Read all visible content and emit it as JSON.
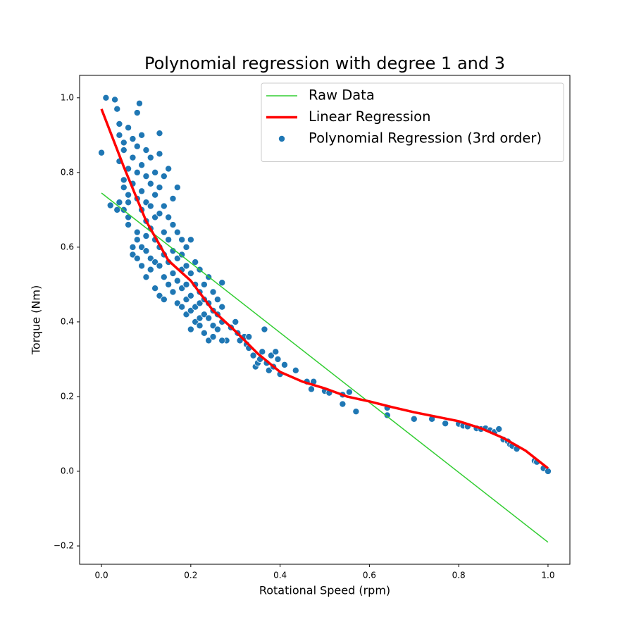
{
  "chart_data": {
    "type": "scatter",
    "title": "Polynomial regression with degree 1 and 3",
    "x_label": "Rotational Speed (rpm)",
    "y_label": "Torque (Nm)",
    "xlim": [
      -0.049,
      1.049
    ],
    "ylim": [
      -0.249,
      1.06
    ],
    "xticks": [
      {
        "value": 0,
        "label": "0.0"
      },
      0.2,
      0.4,
      0.6,
      0.8,
      {
        "value": 1,
        "label": "1.0"
      }
    ],
    "yticks": [
      {
        "value": -0.2,
        "label": "−0.2"
      },
      {
        "value": 0,
        "label": "0.0"
      },
      0.2,
      0.4,
      0.6,
      0.8,
      {
        "value": 1,
        "label": "1.0"
      }
    ],
    "grid": false,
    "legend": "upper right",
    "series": [
      {
        "name": "Raw Data",
        "kind": "line",
        "color": "#32cd32",
        "linewidth": 1.5,
        "x": [
          0,
          1
        ],
        "values": [
          0.745,
          -0.19
        ]
      },
      {
        "name": "Linear Regression",
        "kind": "line",
        "color": "#ff0000",
        "linewidth": 3.5,
        "x": [
          0,
          0.05,
          0.1,
          0.15,
          0.2,
          0.25,
          0.3,
          0.35,
          0.4,
          0.45,
          0.5,
          0.55,
          0.6,
          0.65,
          0.7,
          0.75,
          0.8,
          0.85,
          0.9,
          0.95,
          1.0
        ],
        "values": [
          0.97,
          0.815,
          0.67,
          0.564,
          0.51,
          0.43,
          0.375,
          0.315,
          0.266,
          0.24,
          0.222,
          0.2,
          0.187,
          0.172,
          0.158,
          0.146,
          0.134,
          0.115,
          0.089,
          0.055,
          0.008
        ]
      },
      {
        "name": "Polynomial Regression (3rd order)",
        "kind": "scatter",
        "color": "#1f77b4",
        "x": [
          0,
          0.01,
          0.03,
          0.035,
          0.02,
          0.035,
          0.06,
          0.085,
          0.08,
          0.13,
          0.27,
          0.365,
          0.3,
          0.305,
          0.31,
          0.32,
          0.325,
          0.33,
          0.34,
          0.345,
          0.35,
          0.355,
          0.36,
          0.37,
          0.375,
          0.38,
          0.39,
          0.395,
          0.385,
          0.33,
          0.29,
          0.28,
          0.4,
          0.41,
          0.435,
          0.46,
          0.47,
          0.475,
          0.5,
          0.51,
          0.54,
          0.54,
          0.555,
          0.57,
          0.64,
          0.64,
          0.7,
          0.74,
          0.77,
          0.8,
          0.81,
          0.82,
          0.84,
          0.85,
          0.86,
          0.87,
          0.88,
          0.89,
          0.9,
          0.91,
          0.915,
          0.92,
          0.93,
          0.97,
          0.975,
          0.99,
          1.0,
          0.04,
          0.04,
          0.04,
          0.04,
          0.05,
          0.05,
          0.05,
          0.05,
          0.05,
          0.06,
          0.06,
          0.06,
          0.06,
          0.06,
          0.07,
          0.07,
          0.07,
          0.07,
          0.07,
          0.08,
          0.08,
          0.08,
          0.08,
          0.08,
          0.08,
          0.09,
          0.09,
          0.09,
          0.09,
          0.09,
          0.09,
          0.1,
          0.1,
          0.1,
          0.1,
          0.1,
          0.1,
          0.1,
          0.11,
          0.11,
          0.11,
          0.11,
          0.11,
          0.11,
          0.12,
          0.12,
          0.12,
          0.12,
          0.12,
          0.12,
          0.13,
          0.13,
          0.13,
          0.13,
          0.13,
          0.13,
          0.14,
          0.14,
          0.14,
          0.14,
          0.14,
          0.14,
          0.15,
          0.15,
          0.15,
          0.15,
          0.15,
          0.16,
          0.16,
          0.16,
          0.16,
          0.16,
          0.17,
          0.17,
          0.17,
          0.17,
          0.17,
          0.18,
          0.18,
          0.18,
          0.18,
          0.18,
          0.19,
          0.19,
          0.19,
          0.19,
          0.19,
          0.2,
          0.2,
          0.2,
          0.2,
          0.2,
          0.21,
          0.21,
          0.21,
          0.21,
          0.22,
          0.22,
          0.22,
          0.22,
          0.22,
          0.23,
          0.23,
          0.23,
          0.23,
          0.24,
          0.24,
          0.24,
          0.24,
          0.25,
          0.25,
          0.25,
          0.25,
          0.26,
          0.26,
          0.26,
          0.27,
          0.27,
          0.27
        ],
        "values": [
          0.853,
          1.0,
          0.995,
          0.97,
          0.712,
          0.7,
          0.72,
          0.985,
          0.96,
          0.905,
          0.505,
          0.38,
          0.4,
          0.37,
          0.35,
          0.36,
          0.34,
          0.33,
          0.31,
          0.28,
          0.29,
          0.3,
          0.32,
          0.29,
          0.27,
          0.31,
          0.32,
          0.3,
          0.28,
          0.36,
          0.385,
          0.35,
          0.26,
          0.285,
          0.27,
          0.24,
          0.22,
          0.24,
          0.215,
          0.21,
          0.18,
          0.205,
          0.212,
          0.16,
          0.15,
          0.17,
          0.14,
          0.14,
          0.128,
          0.127,
          0.122,
          0.12,
          0.115,
          0.113,
          0.115,
          0.11,
          0.105,
          0.113,
          0.085,
          0.08,
          0.072,
          0.068,
          0.06,
          0.028,
          0.025,
          0.008,
          0.0,
          0.93,
          0.9,
          0.83,
          0.72,
          0.88,
          0.86,
          0.78,
          0.76,
          0.7,
          0.92,
          0.81,
          0.74,
          0.68,
          0.66,
          0.89,
          0.84,
          0.77,
          0.6,
          0.58,
          0.87,
          0.8,
          0.73,
          0.64,
          0.62,
          0.57,
          0.9,
          0.82,
          0.75,
          0.7,
          0.6,
          0.55,
          0.86,
          0.79,
          0.72,
          0.67,
          0.63,
          0.59,
          0.52,
          0.84,
          0.77,
          0.71,
          0.65,
          0.57,
          0.54,
          0.8,
          0.74,
          0.68,
          0.62,
          0.56,
          0.49,
          0.85,
          0.76,
          0.69,
          0.6,
          0.55,
          0.47,
          0.79,
          0.71,
          0.64,
          0.58,
          0.52,
          0.46,
          0.81,
          0.68,
          0.62,
          0.56,
          0.5,
          0.73,
          0.66,
          0.59,
          0.53,
          0.48,
          0.76,
          0.64,
          0.57,
          0.51,
          0.45,
          0.62,
          0.58,
          0.54,
          0.49,
          0.44,
          0.6,
          0.55,
          0.5,
          0.46,
          0.42,
          0.62,
          0.53,
          0.47,
          0.43,
          0.38,
          0.56,
          0.5,
          0.44,
          0.4,
          0.54,
          0.48,
          0.45,
          0.41,
          0.39,
          0.5,
          0.46,
          0.42,
          0.37,
          0.52,
          0.45,
          0.41,
          0.35,
          0.48,
          0.43,
          0.39,
          0.36,
          0.46,
          0.42,
          0.38,
          0.44,
          0.4,
          0.35
        ]
      }
    ]
  }
}
